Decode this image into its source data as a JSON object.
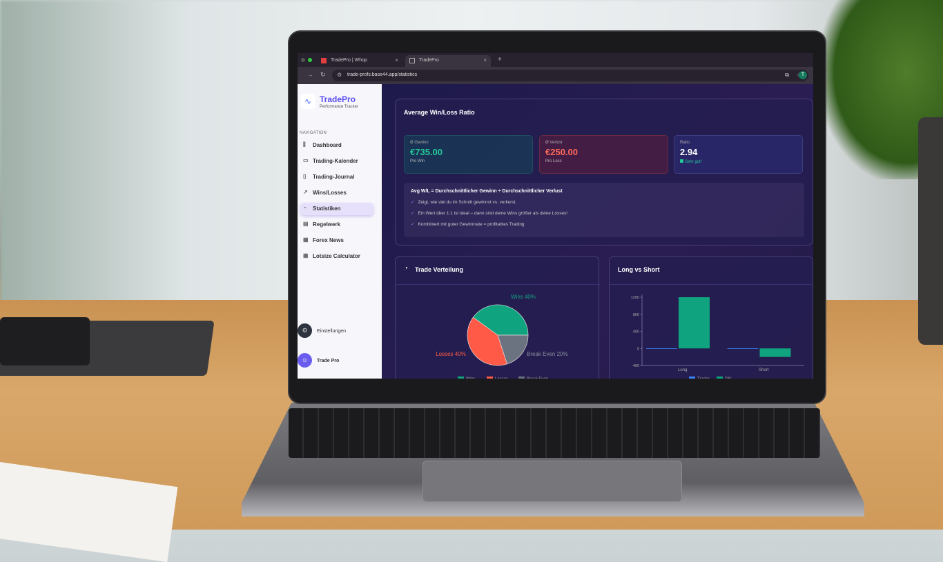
{
  "browser": {
    "tabs": [
      {
        "label": "TradePro | Whop"
      },
      {
        "label": "TradePro"
      }
    ],
    "new_tab": "+",
    "url": "trade-profs.base44.app/statistics",
    "profile_initial": "T"
  },
  "sidebar": {
    "brand": "TradePro",
    "subtitle": "Performance Tracker",
    "section": "NAVIGATION",
    "items": [
      {
        "label": "Dashboard",
        "icon": "bar-chart-icon"
      },
      {
        "label": "Trading-Kalender",
        "icon": "calendar-icon"
      },
      {
        "label": "Trading-Journal",
        "icon": "book-icon"
      },
      {
        "label": "Wins/Losses",
        "icon": "trend-icon"
      },
      {
        "label": "Statistiken",
        "icon": "pie-icon",
        "active": true
      },
      {
        "label": "Regelwerk",
        "icon": "clipboard-icon"
      },
      {
        "label": "Forex News",
        "icon": "news-icon"
      },
      {
        "label": "Lotsize Calculator",
        "icon": "calculator-icon"
      }
    ],
    "settings": "Einstellungen",
    "user": "Trade Pro"
  },
  "winloss": {
    "title": "Average Win/Loss Ratio",
    "gain": {
      "label": "Ø Gewinn",
      "value": "€735.00",
      "sub": "Pro Win",
      "color": "#22c997"
    },
    "loss": {
      "label": "Ø Verlust",
      "value": "€250.00",
      "sub": "Pro Loss",
      "color": "#ff6b5a"
    },
    "ratio": {
      "label": "Ratio",
      "value": "2.94",
      "sub": "Sehr gut!"
    },
    "info_title": "Avg W/L = Durchschnittlicher Gewinn ÷ Durchschnittlicher Verlust",
    "info_items": [
      "Zeigt, wie viel du im Schnitt gewinnst vs. verlierst.",
      "Ein Wert über 1:1 ist ideal – dann sind deine Wins größer als deine Losses!",
      "Kombiniert mit guter Gewinnrate = profitables Trading"
    ]
  },
  "chart_data": [
    {
      "type": "pie",
      "title": "Trade Verteilung",
      "labels": [
        "Wins",
        "Losses",
        "Break Even"
      ],
      "values": [
        40,
        40,
        20
      ],
      "data_labels": [
        "Wins 40%",
        "Losses 40%",
        "Break Even 20%"
      ],
      "colors": [
        "#10a37f",
        "#ff5a47",
        "#6b7280"
      ],
      "legend": "bottom"
    },
    {
      "type": "bar",
      "title": "Long vs Short",
      "categories": [
        "Long",
        "Short"
      ],
      "series": [
        {
          "name": "Trades",
          "values": [
            3,
            2
          ],
          "color": "#3b82f6"
        },
        {
          "name": "P&L",
          "values": [
            1200,
            -200
          ],
          "color": "#10a37f"
        }
      ],
      "ylim": [
        -400,
        1200
      ],
      "yticks": [
        -400,
        0,
        400,
        800,
        1200
      ],
      "legend": "bottom"
    }
  ]
}
